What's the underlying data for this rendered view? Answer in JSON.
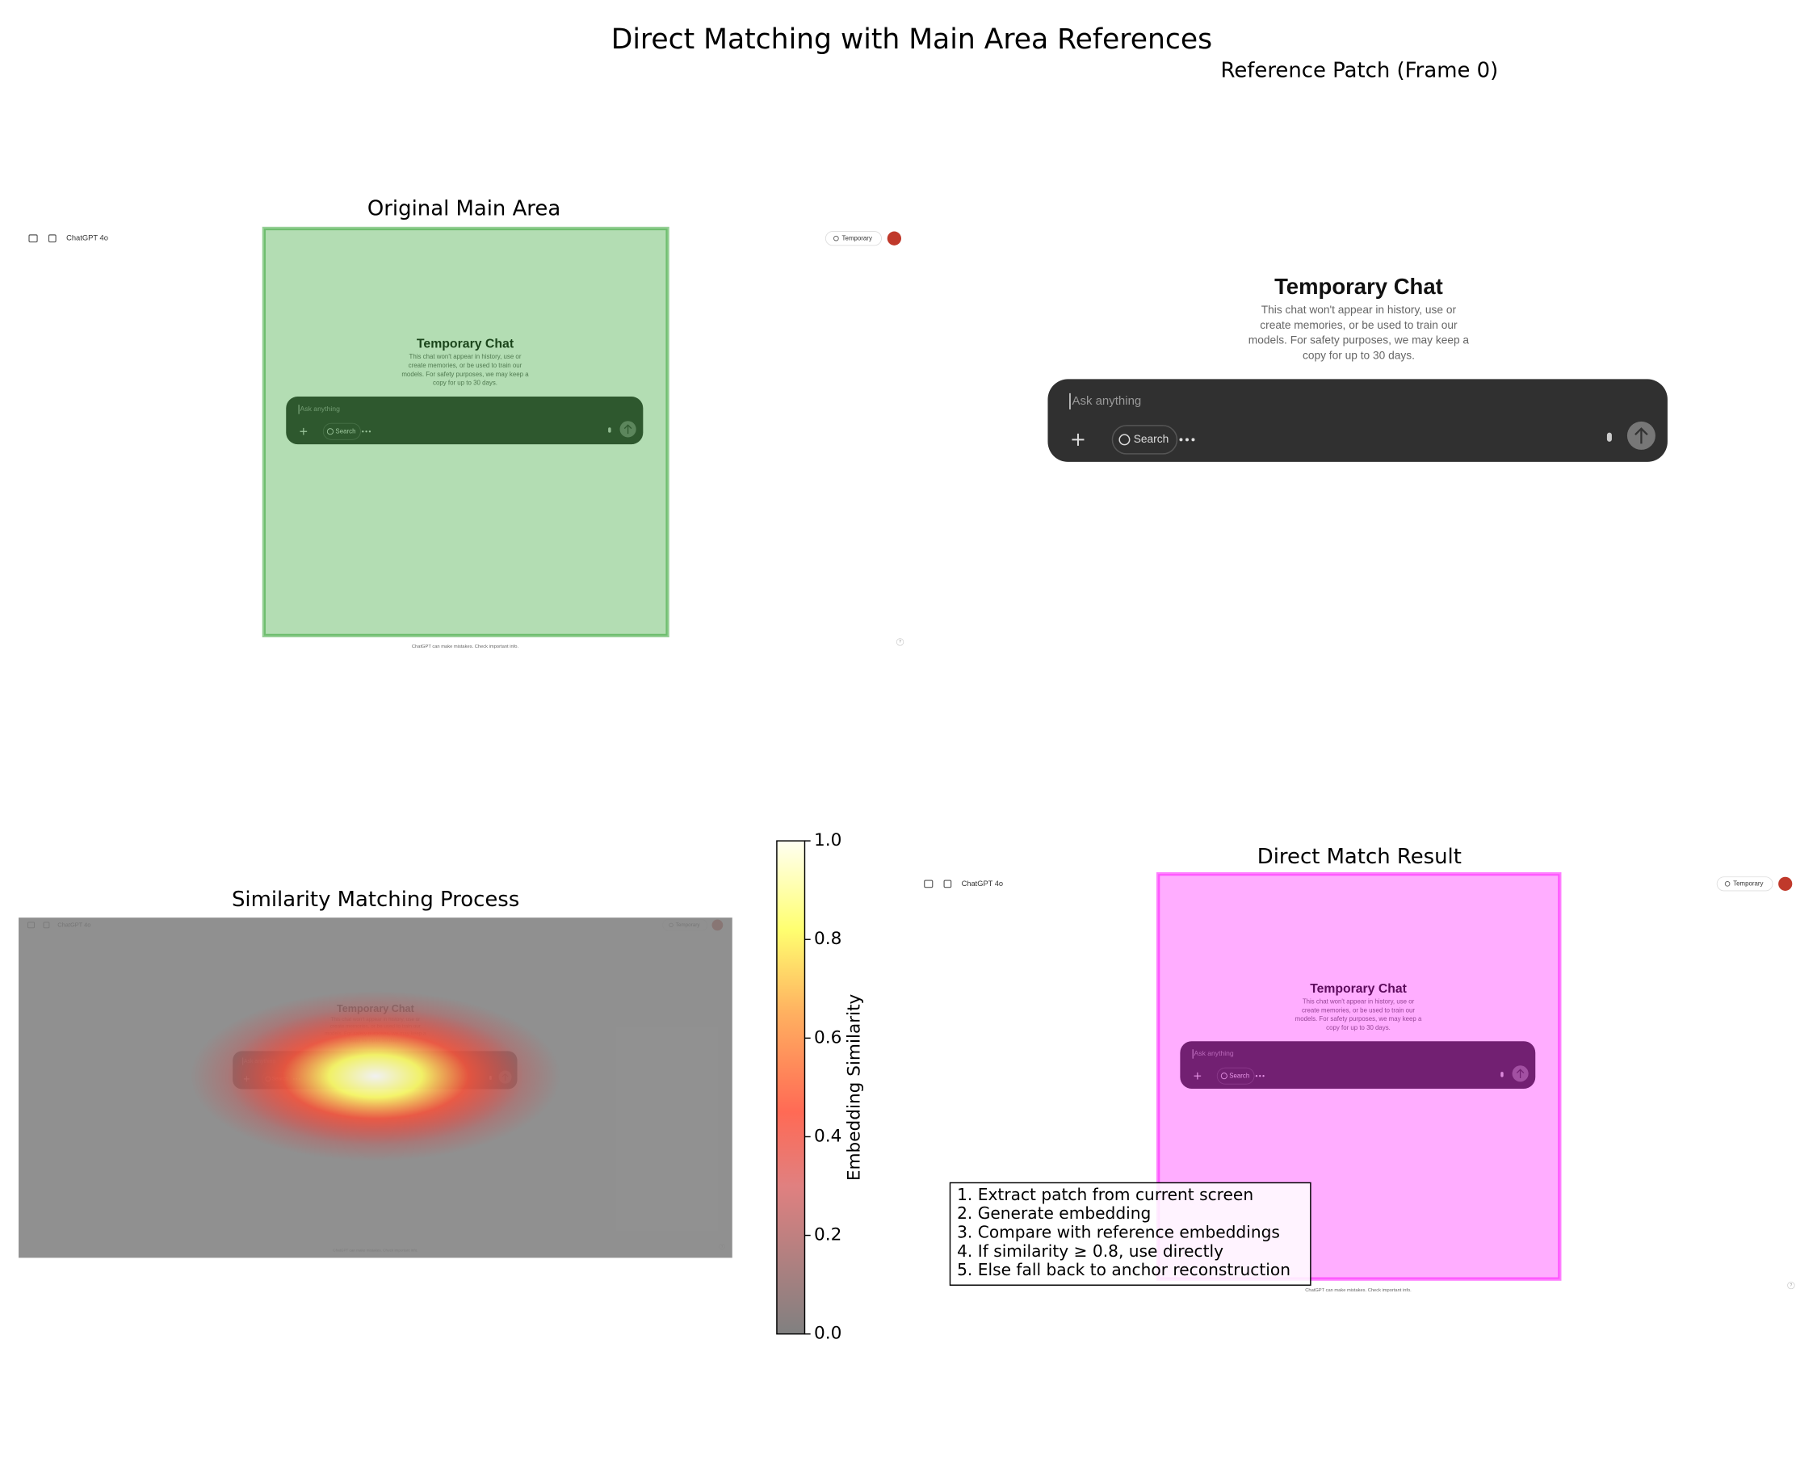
{
  "title": "Direct Matching with Main Area References",
  "panels": {
    "original": {
      "title": "Original Main Area"
    },
    "reference": {
      "title": "Reference Patch (Frame 0)"
    },
    "similarity": {
      "title": "Similarity Matching Process"
    },
    "result": {
      "title": "Direct Match Result"
    }
  },
  "ui": {
    "model": "ChatGPT 4o",
    "temporary": "Temporary",
    "heading": "Temporary Chat",
    "body_lines": [
      "This chat won't appear in history, use or",
      "create memories, or be used to train our",
      "models. For safety purposes, we may keep a",
      "copy for up to 30 days."
    ],
    "placeholder": "Ask anything",
    "search": "Search",
    "footer": "ChatGPT can make mistakes. Check important info.",
    "help": "?"
  },
  "colorbar": {
    "label": "Embedding Similarity",
    "lim": [
      0,
      1
    ],
    "ticks": [
      {
        "value": 0,
        "label": "0.0"
      },
      {
        "value": 0.2,
        "label": "0.2"
      },
      {
        "value": 0.4,
        "label": "0.4"
      },
      {
        "value": 0.6,
        "label": "0.6"
      },
      {
        "value": 0.8,
        "label": "0.8"
      },
      {
        "value": 1,
        "label": "1.0"
      }
    ]
  },
  "steps": [
    "1. Extract patch from current screen",
    "2. Generate embedding",
    "3. Compare with reference embeddings",
    "4. If similarity ≥ 0.8, use directly",
    "5. Else fall back to anchor reconstruction"
  ]
}
